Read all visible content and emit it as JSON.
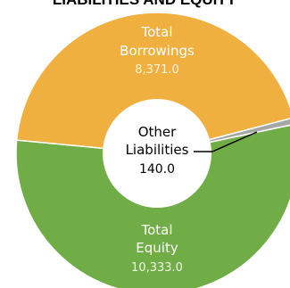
{
  "chart_data": {
    "type": "pie",
    "title": "LIABILITIES AND EQUITY",
    "categories": [
      "Total Equity",
      "Total Borrowings",
      "Other Liabilities"
    ],
    "values": [
      10333.0,
      8371.0,
      140.0
    ],
    "colors": [
      "#70ad47",
      "#f0b040",
      "#a6a6a6"
    ],
    "labels": {
      "borrowings": {
        "line1": "Total",
        "line2": "Borrowings",
        "value": "8,371.0"
      },
      "equity": {
        "line1": "Total",
        "line2": "Equity",
        "value": "10,333.0"
      },
      "other": {
        "line1": "Other",
        "line2": "Liabilities",
        "value": "140.0"
      }
    }
  }
}
